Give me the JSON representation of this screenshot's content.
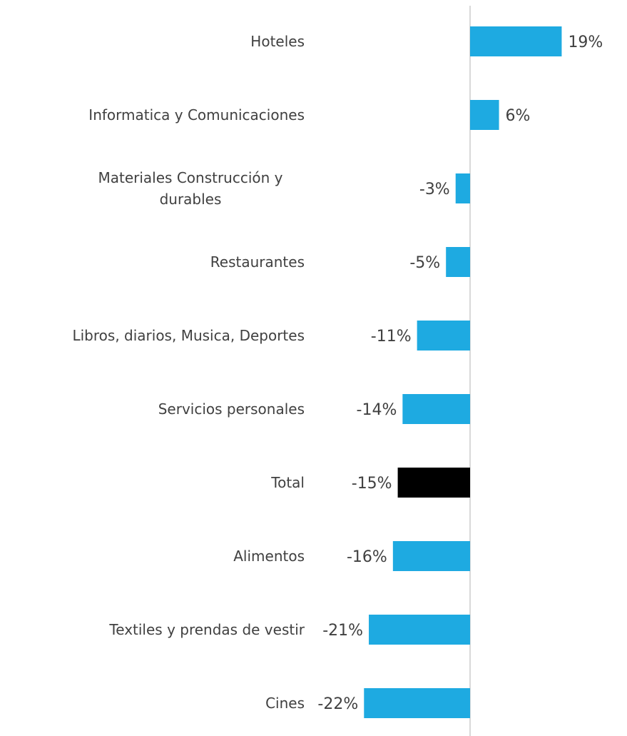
{
  "chart_data": {
    "type": "bar",
    "orientation": "horizontal",
    "categories": [
      "Hoteles",
      "Informatica y Comunicaciones",
      "Materiales Construcción y durables",
      "Restaurantes",
      "Libros, diarios, Musica, Deportes",
      "Servicios personales",
      "Total",
      "Alimentos",
      "Textiles y prendas de vestir",
      "Cines"
    ],
    "values": [
      19,
      6,
      -3,
      -5,
      -11,
      -14,
      -15,
      -16,
      -21,
      -22
    ],
    "value_labels": [
      "19%",
      "6%",
      "-3%",
      "-5%",
      "-11%",
      "-14%",
      "-15%",
      "-16%",
      "-21%",
      "-22%"
    ],
    "colors": [
      "#1eaae1",
      "#1eaae1",
      "#1eaae1",
      "#1eaae1",
      "#1eaae1",
      "#1eaae1",
      "#000000",
      "#1eaae1",
      "#1eaae1",
      "#1eaae1"
    ],
    "xlim": [
      -25,
      25
    ]
  }
}
